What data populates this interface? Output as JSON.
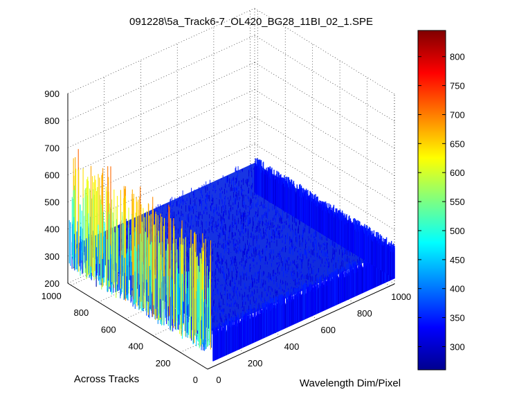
{
  "chart_data": {
    "type": "surface",
    "title": "091228\\5a_Track6-7_OL420_BG28_11BI_02_1.SPE",
    "xlabel": "Wavelength Dim/Pixel",
    "ylabel": "Across Tracks",
    "zlabel": "",
    "xlim": [
      0,
      1024
    ],
    "ylim": [
      0,
      1024
    ],
    "zlim": [
      200,
      900
    ],
    "x_ticks": [
      "0",
      "200",
      "400",
      "600",
      "800",
      "1000"
    ],
    "y_ticks": [
      "0",
      "200",
      "400",
      "600",
      "800",
      "1000"
    ],
    "z_ticks": [
      "200",
      "300",
      "400",
      "500",
      "600",
      "700",
      "800",
      "900"
    ],
    "surface": {
      "baseline_intensity": 330,
      "noise_amplitude": 25,
      "edge_spike_region_x": [
        0,
        30
      ],
      "edge_spike_max": 720
    },
    "grid": true,
    "colormap": "jet",
    "colorbar": {
      "position": "right",
      "range": [
        260,
        845
      ],
      "ticks": [
        "300",
        "350",
        "400",
        "450",
        "500",
        "550",
        "600",
        "650",
        "700",
        "750",
        "800"
      ]
    }
  }
}
